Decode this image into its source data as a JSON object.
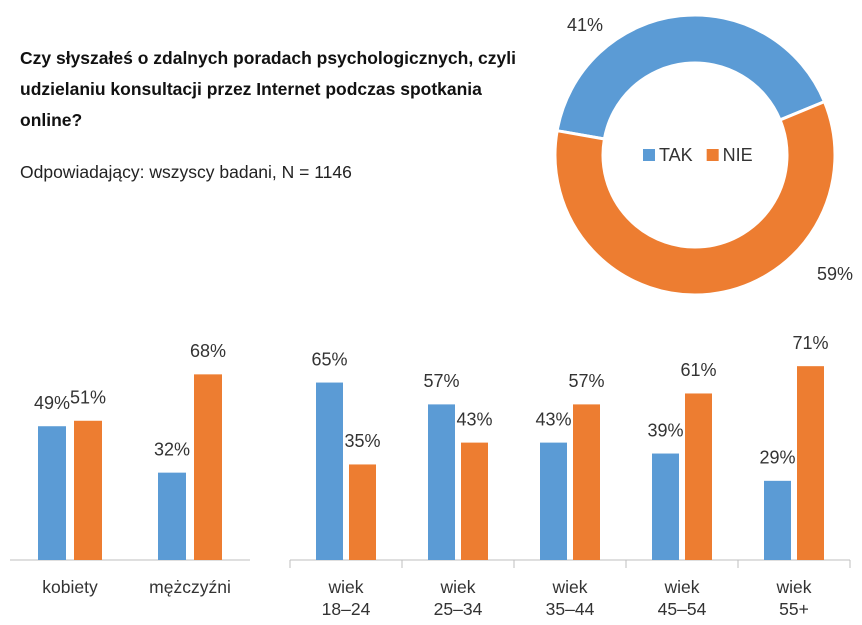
{
  "chart_data": [
    {
      "type": "pie",
      "title": "Czy słyszałeś o zdalnych poradach psychologicznych, czyli udzielaniu konsultacji przez Internet podczas spotkania online?",
      "subtitle": "Odpowiadający: wszyscy badani, N = 1146",
      "categories": [
        "TAK",
        "NIE"
      ],
      "values": [
        41,
        59
      ],
      "value_labels": [
        "41%",
        "59%"
      ],
      "colors": [
        "#5b9bd5",
        "#ed7d31"
      ],
      "legend": "center"
    },
    {
      "type": "bar",
      "categories": [
        "kobiety",
        "mężczyźni"
      ],
      "series": [
        {
          "color": "#5b9bd5",
          "values": [
            49,
            32
          ],
          "value_labels": [
            "49%",
            "32%"
          ]
        },
        {
          "color": "#ed7d31",
          "values": [
            51,
            68
          ],
          "value_labels": [
            "51%",
            "68%"
          ]
        }
      ]
    },
    {
      "type": "bar",
      "categories": [
        "wiek 18–24",
        "wiek 25–34",
        "wiek 35–44",
        "wiek 45–54",
        "wiek 55+"
      ],
      "series": [
        {
          "color": "#5b9bd5",
          "values": [
            65,
            57,
            43,
            39,
            29
          ],
          "value_labels": [
            "65%",
            "57%",
            "43%",
            "39%",
            "29%"
          ]
        },
        {
          "color": "#ed7d31",
          "values": [
            35,
            43,
            57,
            61,
            71
          ],
          "value_labels": [
            "35%",
            "43%",
            "57%",
            "61%",
            "71%"
          ]
        }
      ]
    }
  ]
}
